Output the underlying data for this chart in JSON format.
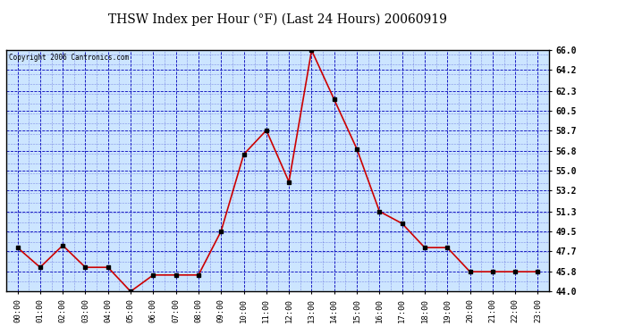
{
  "title": "THSW Index per Hour (°F) (Last 24 Hours) 20060919",
  "copyright": "Copyright 2006 Cantronics.com",
  "x_labels": [
    "00:00",
    "01:00",
    "02:00",
    "03:00",
    "04:00",
    "05:00",
    "06:00",
    "07:00",
    "08:00",
    "09:00",
    "10:00",
    "11:00",
    "12:00",
    "13:00",
    "14:00",
    "15:00",
    "16:00",
    "17:00",
    "18:00",
    "19:00",
    "20:00",
    "21:00",
    "22:00",
    "23:00"
  ],
  "y_values": [
    48.0,
    46.2,
    48.2,
    46.2,
    46.2,
    44.0,
    45.5,
    45.5,
    45.5,
    49.5,
    56.5,
    58.7,
    54.0,
    66.0,
    61.5,
    57.0,
    51.3,
    50.2,
    48.0,
    48.0,
    45.8,
    45.8,
    45.8,
    45.8
  ],
  "y_min": 44.0,
  "y_max": 66.0,
  "y_ticks": [
    44.0,
    45.8,
    47.7,
    49.5,
    51.3,
    53.2,
    55.0,
    56.8,
    58.7,
    60.5,
    62.3,
    64.2,
    66.0
  ],
  "line_color": "#cc0000",
  "marker_color": "#000000",
  "bg_color": "#ffffff",
  "plot_bg_color": "#cce5ff",
  "grid_color": "#0000bb",
  "title_color": "#000000",
  "copyright_color": "#000000",
  "border_color": "#000000"
}
